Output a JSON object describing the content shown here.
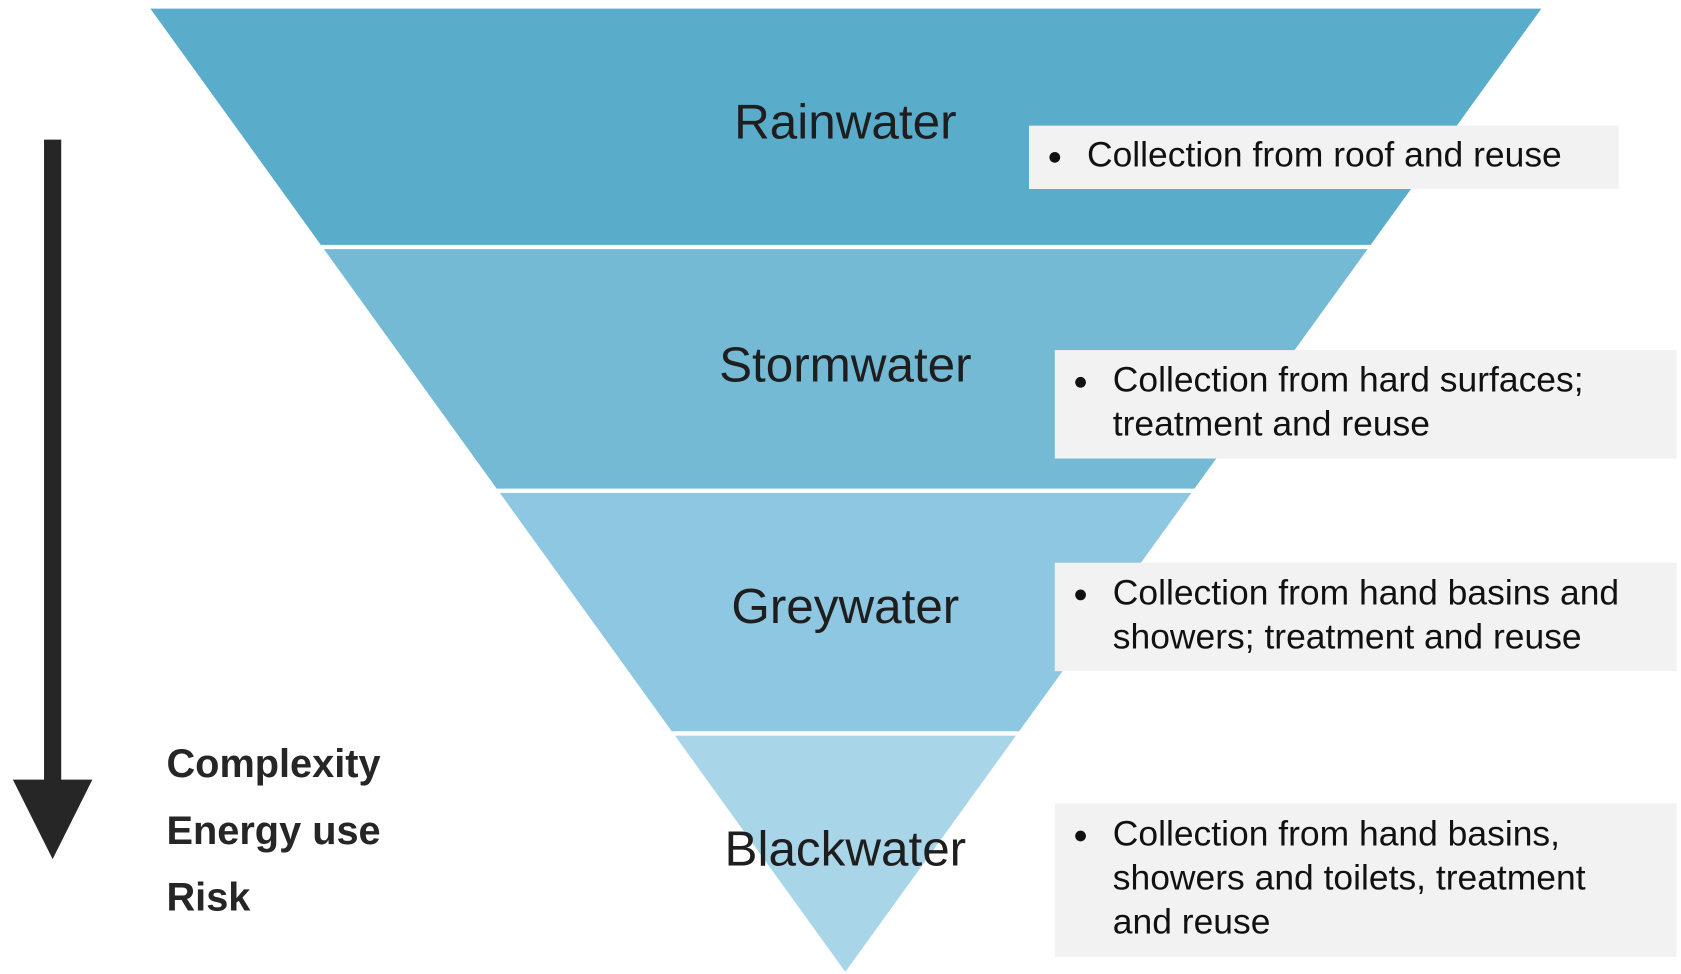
{
  "tiers": [
    {
      "name": "Rainwater",
      "description": [
        "Collection from roof and reuse"
      ]
    },
    {
      "name": "Stormwater",
      "description": [
        "Collection from hard surfaces;",
        "treatment and reuse"
      ]
    },
    {
      "name": "Greywater",
      "description": [
        "Collection from hand basins and",
        "showers; treatment and reuse"
      ]
    },
    {
      "name": "Blackwater",
      "description": [
        "Collection from hand basins,",
        "showers and toilets, treatment",
        "and reuse"
      ]
    }
  ],
  "increasing": [
    "Complexity",
    "Energy use",
    "Risk"
  ]
}
